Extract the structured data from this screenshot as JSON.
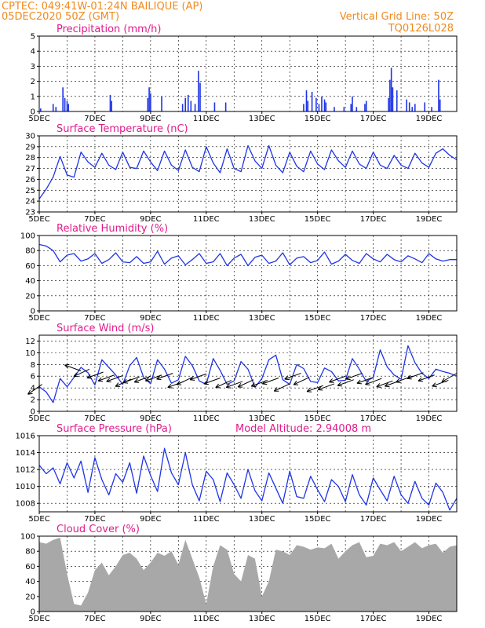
{
  "header": {
    "line1": "CPTEC:   049:41W-01:24N   BAILIQUE (AP)",
    "line2": "05DEC2020 50Z (GMT)",
    "grid_note": "Vertical Grid Line: 50Z",
    "code": "TQ0126L028"
  },
  "colors": {
    "header": "#ef8a1e",
    "title": "#e01c8c",
    "line": "#1f35e6",
    "cloud": "#a8a8a8",
    "grid": "#000000"
  },
  "x_axis": {
    "labels": [
      "5DEC",
      "7DEC",
      "9DEC",
      "11DEC",
      "13DEC",
      "15DEC",
      "17DEC",
      "19DEC"
    ],
    "label_day": [
      0,
      2,
      4,
      6,
      8,
      10,
      12,
      14
    ],
    "span_days": 15
  },
  "chart_data": [
    {
      "type": "bar",
      "title": "Precipitation (mm/h)",
      "ylim": [
        0,
        5
      ],
      "yticks": [
        0,
        1,
        2,
        3,
        4,
        5
      ],
      "bars": [
        [
          0.05,
          0.2
        ],
        [
          0.5,
          0.5
        ],
        [
          0.6,
          0.3
        ],
        [
          0.85,
          1.6
        ],
        [
          0.92,
          0.9
        ],
        [
          1.0,
          0.7
        ],
        [
          1.05,
          0.5
        ],
        [
          2.55,
          1.1
        ],
        [
          2.6,
          0.7
        ],
        [
          3.9,
          0.9
        ],
        [
          3.95,
          1.6
        ],
        [
          4.0,
          1.2
        ],
        [
          4.4,
          1.0
        ],
        [
          5.15,
          0.5
        ],
        [
          5.25,
          0.9
        ],
        [
          5.35,
          1.1
        ],
        [
          5.45,
          0.7
        ],
        [
          5.6,
          0.5
        ],
        [
          5.72,
          2.7
        ],
        [
          5.78,
          1.9
        ],
        [
          6.3,
          0.6
        ],
        [
          6.7,
          0.6
        ],
        [
          9.5,
          0.5
        ],
        [
          9.6,
          1.4
        ],
        [
          9.65,
          0.7
        ],
        [
          9.8,
          1.3
        ],
        [
          9.95,
          0.9
        ],
        [
          10.05,
          0.5
        ],
        [
          10.15,
          1.0
        ],
        [
          10.25,
          0.8
        ],
        [
          10.3,
          0.6
        ],
        [
          10.6,
          0.3
        ],
        [
          10.95,
          0.3
        ],
        [
          11.2,
          0.5
        ],
        [
          11.25,
          1.0
        ],
        [
          11.4,
          0.3
        ],
        [
          11.7,
          0.5
        ],
        [
          11.75,
          0.7
        ],
        [
          12.55,
          0.9
        ],
        [
          12.6,
          2.1
        ],
        [
          12.65,
          2.9
        ],
        [
          12.7,
          1.6
        ],
        [
          12.85,
          1.4
        ],
        [
          13.2,
          0.8
        ],
        [
          13.3,
          0.6
        ],
        [
          13.4,
          0.3
        ],
        [
          13.5,
          0.5
        ],
        [
          13.85,
          0.6
        ],
        [
          14.1,
          0.3
        ],
        [
          14.35,
          2.1
        ],
        [
          14.4,
          0.8
        ]
      ]
    },
    {
      "type": "line",
      "title": "Surface Temperature (nC)",
      "ylim": [
        23,
        30
      ],
      "yticks": [
        23,
        24,
        25,
        26,
        27,
        28,
        29,
        30
      ],
      "x": [
        0,
        0.25,
        0.5,
        0.75,
        1,
        1.25,
        1.5,
        1.75,
        2,
        2.25,
        2.5,
        2.75,
        3,
        3.25,
        3.5,
        3.75,
        4,
        4.25,
        4.5,
        4.75,
        5,
        5.25,
        5.5,
        5.75,
        6,
        6.25,
        6.5,
        6.75,
        7,
        7.25,
        7.5,
        7.75,
        8,
        8.25,
        8.5,
        8.75,
        9,
        9.25,
        9.5,
        9.75,
        10,
        10.25,
        10.5,
        10.75,
        11,
        11.25,
        11.5,
        11.75,
        12,
        12.25,
        12.5,
        12.75,
        13,
        13.25,
        13.5,
        13.75,
        14,
        14.25,
        14.5,
        14.75,
        15
      ],
      "y": [
        24.2,
        25.1,
        26.2,
        28.1,
        26.4,
        26.2,
        28.5,
        27.6,
        27.1,
        28.4,
        27.3,
        26.9,
        28.5,
        27.1,
        27.0,
        28.6,
        27.6,
        26.8,
        28.6,
        27.3,
        26.8,
        28.7,
        27.1,
        26.7,
        29.0,
        27.5,
        26.6,
        28.8,
        27.0,
        26.7,
        29.1,
        27.7,
        27.0,
        29.1,
        27.3,
        26.6,
        28.5,
        27.2,
        26.7,
        28.6,
        27.4,
        26.9,
        28.7,
        27.7,
        27.1,
        28.6,
        27.4,
        27.0,
        28.5,
        27.3,
        27.0,
        28.2,
        27.3,
        27.0,
        28.4,
        27.5,
        27.1,
        28.4,
        28.8,
        28.2,
        27.8
      ]
    },
    {
      "type": "line",
      "title": "Relative Humidity (%)",
      "ylim": [
        0,
        100
      ],
      "yticks": [
        0,
        20,
        40,
        60,
        80,
        100
      ],
      "x": [
        0,
        0.25,
        0.5,
        0.75,
        1,
        1.25,
        1.5,
        1.75,
        2,
        2.25,
        2.5,
        2.75,
        3,
        3.25,
        3.5,
        3.75,
        4,
        4.25,
        4.5,
        4.75,
        5,
        5.25,
        5.5,
        5.75,
        6,
        6.25,
        6.5,
        6.75,
        7,
        7.25,
        7.5,
        7.75,
        8,
        8.25,
        8.5,
        8.75,
        9,
        9.25,
        9.5,
        9.75,
        10,
        10.25,
        10.5,
        10.75,
        11,
        11.25,
        11.5,
        11.75,
        12,
        12.25,
        12.5,
        12.75,
        13,
        13.25,
        13.5,
        13.75,
        14,
        14.25,
        14.5,
        14.75,
        15
      ],
      "y": [
        88,
        86,
        80,
        65,
        74,
        76,
        66,
        69,
        76,
        63,
        68,
        77,
        65,
        64,
        72,
        63,
        65,
        79,
        62,
        70,
        73,
        61,
        68,
        76,
        63,
        65,
        76,
        60,
        70,
        75,
        60,
        71,
        74,
        63,
        66,
        77,
        61,
        70,
        72,
        64,
        67,
        78,
        62,
        66,
        75,
        67,
        63,
        76,
        69,
        65,
        75,
        68,
        65,
        73,
        69,
        64,
        76,
        69,
        66,
        68,
        68
      ],
      "annotations": []
    },
    {
      "type": "line",
      "title": "Surface Wind (m/s)",
      "ylim": [
        0,
        13
      ],
      "yticks": [
        0,
        2,
        4,
        6,
        8,
        10,
        12
      ],
      "x": [
        0,
        0.25,
        0.5,
        0.75,
        1,
        1.25,
        1.5,
        1.75,
        2,
        2.25,
        2.5,
        2.75,
        3,
        3.25,
        3.5,
        3.75,
        4,
        4.25,
        4.5,
        4.75,
        5,
        5.25,
        5.5,
        5.75,
        6,
        6.25,
        6.5,
        6.75,
        7,
        7.25,
        7.5,
        7.75,
        8,
        8.25,
        8.5,
        8.75,
        9,
        9.25,
        9.5,
        9.75,
        10,
        10.25,
        10.5,
        10.75,
        11,
        11.25,
        11.5,
        11.75,
        12,
        12.25,
        12.5,
        12.75,
        13,
        13.25,
        13.5,
        13.75,
        14,
        14.25,
        14.5,
        14.75,
        15
      ],
      "y": [
        4.2,
        3.3,
        1.5,
        5.6,
        4.2,
        5.8,
        7.5,
        6.6,
        4.5,
        8.8,
        7.5,
        6.2,
        4.6,
        7.8,
        9.2,
        5.8,
        4.7,
        8.8,
        7.2,
        4.8,
        5.4,
        9.4,
        7.8,
        5.2,
        4.6,
        9.0,
        7.0,
        4.6,
        5.2,
        8.5,
        7.2,
        4.1,
        5.6,
        8.8,
        9.6,
        5.4,
        4.6,
        8.0,
        7.3,
        5.1,
        4.9,
        7.4,
        6.8,
        5.2,
        5.3,
        9.0,
        7.2,
        5.1,
        5.8,
        10.5,
        7.6,
        6.2,
        5.5,
        11.2,
        8.3,
        6.5,
        5.6,
        7.2,
        6.8,
        6.5,
        6.0
      ],
      "wind_vectors": [
        [
          0.1,
          4.6,
          215
        ],
        [
          1.5,
          6.9,
          160
        ],
        [
          1.8,
          7.2,
          205
        ],
        [
          2.3,
          6.7,
          200
        ],
        [
          2.7,
          6.2,
          200
        ],
        [
          3.0,
          6.1,
          200
        ],
        [
          3.3,
          5.5,
          205
        ],
        [
          3.6,
          5.9,
          200
        ],
        [
          4.0,
          6.0,
          200
        ],
        [
          4.4,
          6.2,
          200
        ],
        [
          4.8,
          6.5,
          200
        ],
        [
          5.2,
          5.1,
          200
        ],
        [
          5.5,
          5.8,
          205
        ],
        [
          6.0,
          6.4,
          200
        ],
        [
          6.5,
          5.7,
          200
        ],
        [
          6.9,
          5.3,
          205
        ],
        [
          7.3,
          5.1,
          200
        ],
        [
          7.7,
          5.4,
          205
        ],
        [
          8.2,
          5.3,
          200
        ],
        [
          8.6,
          5.7,
          200
        ],
        [
          9.0,
          4.7,
          205
        ],
        [
          9.4,
          6.5,
          200
        ],
        [
          9.7,
          5.8,
          205
        ],
        [
          10.2,
          4.4,
          200
        ],
        [
          10.6,
          4.7,
          200
        ],
        [
          11.0,
          6.0,
          200
        ],
        [
          11.3,
          5.4,
          200
        ],
        [
          11.6,
          6.5,
          200
        ],
        [
          12.0,
          5.8,
          200
        ],
        [
          12.3,
          5.6,
          200
        ],
        [
          12.7,
          5.2,
          200
        ],
        [
          13.0,
          5.3,
          200
        ],
        [
          13.4,
          6.0,
          200
        ],
        [
          13.8,
          6.6,
          200
        ],
        [
          14.2,
          6.2,
          200
        ],
        [
          14.7,
          5.3,
          200
        ],
        [
          15.0,
          6.5,
          210
        ]
      ]
    },
    {
      "type": "line",
      "title": "Surface Pressure (hPa)",
      "subtitle": "Model Altitude: 2.94008 m",
      "ylim": [
        1007,
        1016
      ],
      "yticks": [
        1008,
        1010,
        1012,
        1014,
        1016
      ],
      "x": [
        0,
        0.25,
        0.5,
        0.75,
        1,
        1.25,
        1.5,
        1.75,
        2,
        2.25,
        2.5,
        2.75,
        3,
        3.25,
        3.5,
        3.75,
        4,
        4.25,
        4.5,
        4.75,
        5,
        5.25,
        5.5,
        5.75,
        6,
        6.25,
        6.5,
        6.75,
        7,
        7.25,
        7.5,
        7.75,
        8,
        8.25,
        8.5,
        8.75,
        9,
        9.25,
        9.5,
        9.75,
        10,
        10.25,
        10.5,
        10.75,
        11,
        11.25,
        11.5,
        11.75,
        12,
        12.25,
        12.5,
        12.75,
        13,
        13.25,
        13.5,
        13.75,
        14,
        14.25,
        14.5,
        14.75,
        15
      ],
      "y": [
        1012.5,
        1011.5,
        1012.2,
        1010.3,
        1012.8,
        1011.0,
        1013.0,
        1009.3,
        1013.4,
        1010.8,
        1009.0,
        1011.5,
        1010.5,
        1012.8,
        1009.2,
        1013.6,
        1011.3,
        1009.4,
        1014.5,
        1011.6,
        1010.2,
        1014.0,
        1010.2,
        1008.3,
        1011.8,
        1010.8,
        1008.2,
        1011.6,
        1010.2,
        1008.6,
        1012.0,
        1009.5,
        1008.3,
        1011.6,
        1009.8,
        1008.0,
        1011.8,
        1008.8,
        1008.6,
        1011.2,
        1009.6,
        1008.2,
        1010.8,
        1010.0,
        1008.2,
        1011.4,
        1009.0,
        1007.8,
        1011.0,
        1009.6,
        1008.3,
        1011.2,
        1009.0,
        1008.0,
        1010.6,
        1008.6,
        1007.8,
        1010.4,
        1009.3,
        1007.2,
        1008.6
      ]
    },
    {
      "type": "bar",
      "title": "Cloud Cover (%)",
      "ylim": [
        0,
        100
      ],
      "yticks": [
        0,
        20,
        40,
        60,
        80,
        100
      ],
      "x": [
        0,
        0.25,
        0.5,
        0.75,
        1,
        1.25,
        1.5,
        1.75,
        2,
        2.25,
        2.5,
        2.75,
        3,
        3.25,
        3.5,
        3.75,
        4,
        4.25,
        4.5,
        4.75,
        5,
        5.25,
        5.5,
        5.75,
        6,
        6.25,
        6.5,
        6.75,
        7,
        7.25,
        7.5,
        7.75,
        8,
        8.25,
        8.5,
        8.75,
        9,
        9.25,
        9.5,
        9.75,
        10,
        10.25,
        10.5,
        10.75,
        11,
        11.25,
        11.5,
        11.75,
        12,
        12.25,
        12.5,
        12.75,
        13,
        13.25,
        13.5,
        13.75,
        14,
        14.25,
        14.5,
        14.75,
        15
      ],
      "y": [
        92,
        90,
        95,
        98,
        50,
        10,
        8,
        25,
        55,
        65,
        48,
        60,
        75,
        78,
        70,
        55,
        65,
        78,
        74,
        80,
        62,
        95,
        70,
        45,
        10,
        60,
        88,
        82,
        50,
        40,
        75,
        70,
        20,
        40,
        82,
        80,
        75,
        88,
        86,
        82,
        85,
        84,
        90,
        70,
        80,
        88,
        92,
        72,
        74,
        90,
        88,
        92,
        80,
        86,
        92,
        84,
        88,
        90,
        78,
        86,
        88
      ]
    }
  ]
}
